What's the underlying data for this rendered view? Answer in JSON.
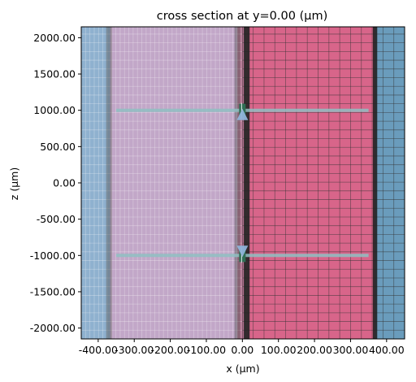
{
  "chart_data": {
    "type": "heatmap",
    "title": "cross section at y=0.00 (μm)",
    "xlabel": "x (μm)",
    "ylabel": "z (μm)",
    "xlim": [
      -447,
      450
    ],
    "ylim": [
      -2150,
      2150
    ],
    "x_ticks": [
      {
        "value": -400,
        "label": "-400.00"
      },
      {
        "value": -300,
        "label": "-300.00"
      },
      {
        "value": -200,
        "label": "-200.00"
      },
      {
        "value": -100,
        "label": "-100.00"
      },
      {
        "value": 0,
        "label": "0.00"
      },
      {
        "value": 100,
        "label": "100.00"
      },
      {
        "value": 200,
        "label": "200.00"
      },
      {
        "value": 300,
        "label": "300.00"
      },
      {
        "value": 400,
        "label": "400.00"
      }
    ],
    "y_ticks": [
      {
        "value": 2000,
        "label": "2000.00"
      },
      {
        "value": 1500,
        "label": "1500.00"
      },
      {
        "value": 1000,
        "label": "1000.00"
      },
      {
        "value": 500,
        "label": "500.00"
      },
      {
        "value": 0,
        "label": "0.00"
      },
      {
        "value": -500,
        "label": "-500.00"
      },
      {
        "value": -1000,
        "label": "-1000.00"
      },
      {
        "value": -1500,
        "label": "-1500.00"
      },
      {
        "value": -2000,
        "label": "-2000.00"
      }
    ],
    "regions": [
      {
        "x0": -447,
        "x1": -367,
        "color": "#8fb1cf"
      },
      {
        "x0": -367,
        "x1": -14,
        "color": "#c2a7c8"
      },
      {
        "x0": -14,
        "x1": 12,
        "color": "#b26f8e"
      },
      {
        "x0": 12,
        "x1": 368,
        "color": "#d8658a"
      },
      {
        "x0": 368,
        "x1": 450,
        "color": "#6a9cbc"
      }
    ],
    "dark_bands": [
      {
        "x0": 4,
        "x1": 20,
        "color": "#222222",
        "opacity": 0.9
      },
      {
        "x0": 362,
        "x1": 374,
        "color": "#222222",
        "opacity": 0.9
      },
      {
        "x0": -378,
        "x1": -362,
        "color": "#555555",
        "opacity": 0.45
      },
      {
        "x0": -22,
        "x1": -6,
        "color": "#555555",
        "opacity": 0.45
      }
    ],
    "grid_lines": {
      "fine": {
        "x0": -447,
        "x1": 0,
        "step": 12,
        "color": "#ffffff",
        "opacity": 0.3
      },
      "coarse": {
        "x0": 0,
        "x1": 450,
        "step": 30,
        "color": "#333333",
        "opacity": 0.55
      },
      "horizontal_step": 120
    },
    "monitors": [
      {
        "x0": -350,
        "x1": 350,
        "z": 1000,
        "color": "#8fc0c2"
      },
      {
        "x0": -350,
        "x1": 350,
        "z": -1000,
        "color": "#8fc0c2"
      }
    ],
    "sources": [
      {
        "x": 0,
        "z": 1000,
        "direction": "up",
        "arrow_color": "#8fb3d9",
        "marker_color": "#2f6e54"
      },
      {
        "x": 0,
        "z": -1000,
        "direction": "down",
        "arrow_color": "#8fb3d9",
        "marker_color": "#2f6e54"
      }
    ]
  }
}
